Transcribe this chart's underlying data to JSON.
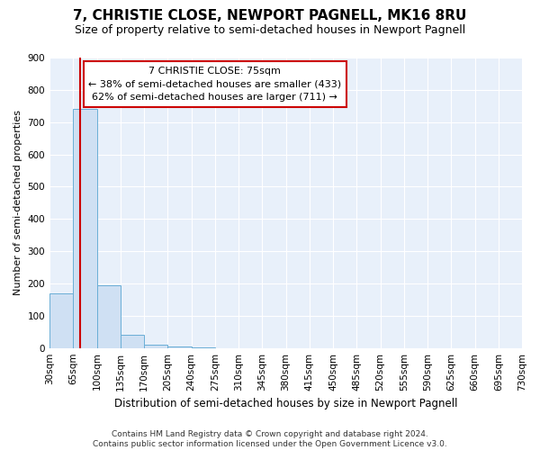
{
  "title": "7, CHRISTIE CLOSE, NEWPORT PAGNELL, MK16 8RU",
  "subtitle": "Size of property relative to semi-detached houses in Newport Pagnell",
  "xlabel": "Distribution of semi-detached houses by size in Newport Pagnell",
  "ylabel": "Number of semi-detached properties",
  "footer_line1": "Contains HM Land Registry data © Crown copyright and database right 2024.",
  "footer_line2": "Contains public sector information licensed under the Open Government Licence v3.0.",
  "property_size": 75,
  "annotation_title": "7 CHRISTIE CLOSE: 75sqm",
  "annotation_line1": "← 38% of semi-detached houses are smaller (433)",
  "annotation_line2": "62% of semi-detached houses are larger (711) →",
  "bin_labels": [
    "30sqm",
    "65sqm",
    "100sqm",
    "135sqm",
    "170sqm",
    "205sqm",
    "240sqm",
    "275sqm",
    "310sqm",
    "345sqm",
    "380sqm",
    "415sqm",
    "450sqm",
    "485sqm",
    "520sqm",
    "555sqm",
    "590sqm",
    "625sqm",
    "660sqm",
    "695sqm",
    "730sqm"
  ],
  "bar_values": [
    170,
    740,
    195,
    40,
    10,
    5,
    2,
    0,
    0,
    0,
    0,
    0,
    0,
    0,
    0,
    0,
    0,
    0,
    0,
    0
  ],
  "bar_color": "#cfe0f3",
  "bar_edge_color": "#6aaed6",
  "vline_color": "#cc0000",
  "annotation_box_color": "#ffffff",
  "annotation_box_edge": "#cc0000",
  "background_color": "#e8f0fa",
  "grid_color": "#ffffff",
  "ylim": [
    0,
    900
  ],
  "yticks": [
    0,
    100,
    200,
    300,
    400,
    500,
    600,
    700,
    800,
    900
  ],
  "title_fontsize": 11,
  "subtitle_fontsize": 9,
  "ylabel_fontsize": 8,
  "xlabel_fontsize": 8.5,
  "footer_fontsize": 6.5,
  "tick_fontsize": 7.5,
  "ann_fontsize": 8
}
